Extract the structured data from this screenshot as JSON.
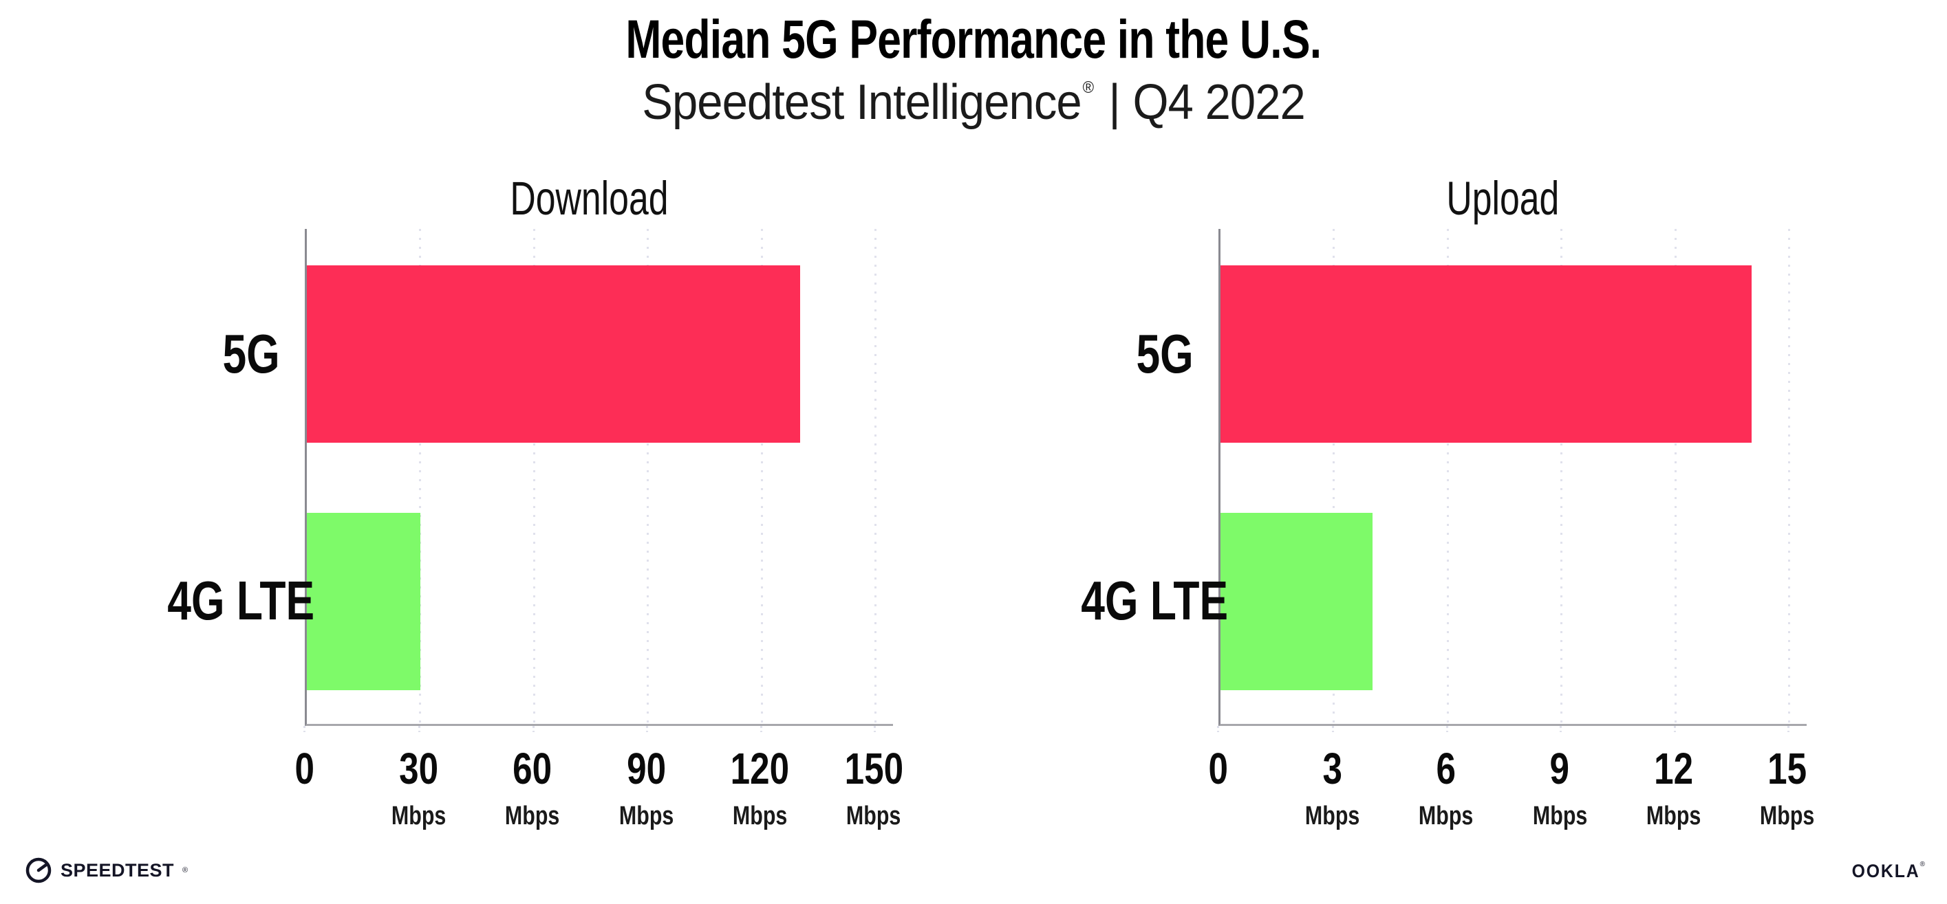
{
  "header": {
    "title": "Median 5G Performance in the U.S.",
    "subtitle_brand": "Speedtest Intelligence",
    "subtitle_reg": "®",
    "subtitle_sep": "|",
    "subtitle_period": "Q4 2022"
  },
  "chart_data": [
    {
      "type": "bar",
      "orientation": "horizontal",
      "title": "Download",
      "categories": [
        "5G",
        "4G LTE"
      ],
      "values": [
        130,
        30
      ],
      "unit": "Mbps",
      "xlim": [
        0,
        150
      ],
      "ticks": [
        0,
        30,
        60,
        90,
        120,
        150
      ],
      "grid": "dotted-vertical",
      "legend": "none",
      "bar_colors": [
        "#FD2D56",
        "#7EFA69"
      ]
    },
    {
      "type": "bar",
      "orientation": "horizontal",
      "title": "Upload",
      "categories": [
        "5G",
        "4G LTE"
      ],
      "values": [
        14,
        4
      ],
      "unit": "Mbps",
      "xlim": [
        0,
        15
      ],
      "ticks": [
        0,
        3,
        6,
        9,
        12,
        15
      ],
      "grid": "dotted-vertical",
      "legend": "none",
      "bar_colors": [
        "#FD2D56",
        "#7EFA69"
      ]
    }
  ],
  "colors": {
    "bar_5g": "#FD2D56",
    "bar_4g_lte": "#7EFA69",
    "gridline": "#E0E1EC",
    "axis": "#8A8A91",
    "text": "#000000",
    "brand_dark": "#141526"
  },
  "footer": {
    "speedtest_label": "SPEEDTEST",
    "speedtest_mark": "®",
    "ookla_label": "OOKLA",
    "ookla_mark": "®"
  }
}
